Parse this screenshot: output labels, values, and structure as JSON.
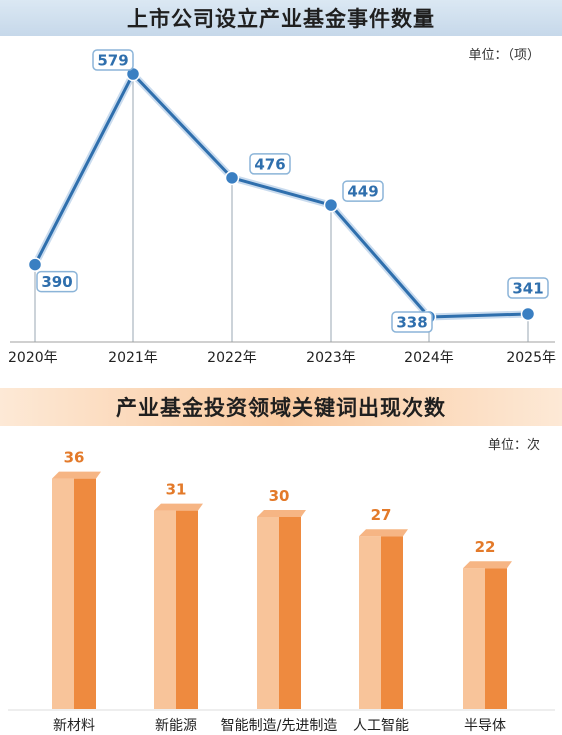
{
  "chart_data": [
    {
      "type": "line",
      "title": "上市公司设立产业基金事件数量",
      "unit_label": "单位：（项）",
      "categories": [
        "2020年",
        "2021年",
        "2022年",
        "2023年",
        "2024年",
        "2025年"
      ],
      "values": [
        390,
        579,
        476,
        449,
        338,
        341
      ],
      "data_labels": [
        "390",
        "579",
        "476",
        "449",
        "338",
        "341"
      ],
      "colors": {
        "line": "#2f6fad",
        "point": "#3a7fc2",
        "label_border": "#8bb4d8",
        "label_text": "#2f6fad"
      }
    },
    {
      "type": "bar",
      "title": "产业基金投资领域关键词出现次数",
      "unit_label": "单位：次",
      "categories": [
        "新材料",
        "新能源",
        "智能制造/先进制造",
        "人工智能",
        "半导体"
      ],
      "values": [
        36,
        31,
        30,
        27,
        22
      ],
      "data_labels": [
        "36",
        "31",
        "30",
        "27",
        "22"
      ],
      "colors": {
        "bar_light": "#f8c49a",
        "bar_dark": "#ee8a3f",
        "bar_top": "#f6b584",
        "label": "#e37a2a"
      }
    }
  ]
}
